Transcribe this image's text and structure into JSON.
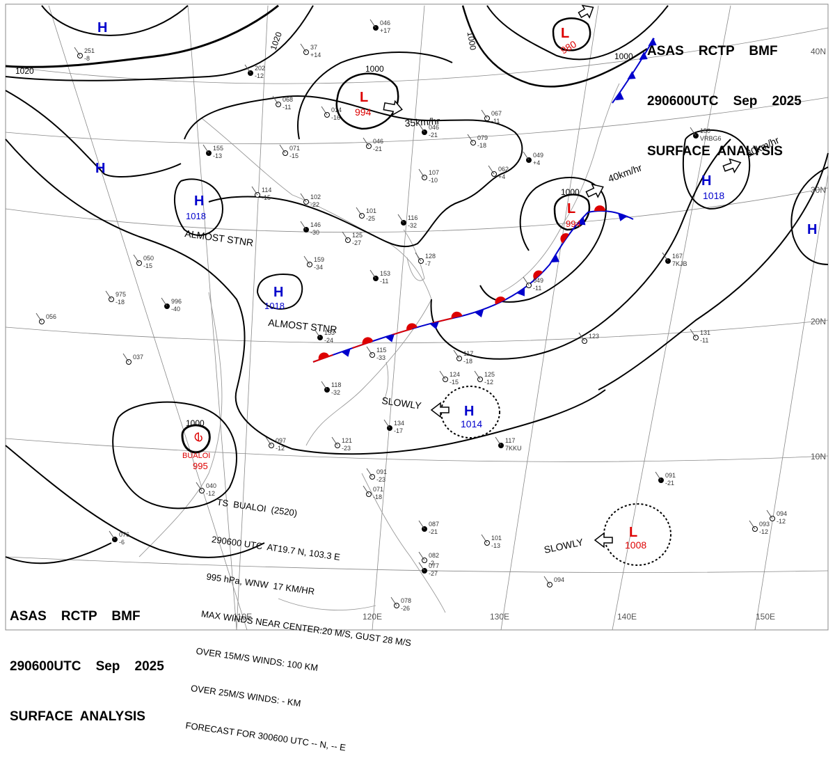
{
  "header": {
    "line1": "ASAS    RCTP    BMF",
    "line2": "290600UTC    Sep    2025",
    "line3": "SURFACE  ANALYSIS"
  },
  "footer_header": {
    "line1": "ASAS    RCTP    BMF",
    "line2": "290600UTC    Sep    2025",
    "line3": "SURFACE  ANALYSIS"
  },
  "isobar_labels": [
    "1020",
    "1020",
    "1000",
    "1000",
    "1000",
    "1000",
    "1000"
  ],
  "pressure_centers": [
    {
      "symbol": "H",
      "value": ""
    },
    {
      "symbol": "H",
      "value": ""
    },
    {
      "symbol": "H",
      "value": "1018",
      "note": "ALMOST STNR"
    },
    {
      "symbol": "H",
      "value": "1018",
      "note": "ALMOST STNR"
    },
    {
      "symbol": "L",
      "value": "994",
      "motion": "35km/hr"
    },
    {
      "symbol": "L",
      "value": "980"
    },
    {
      "symbol": "L",
      "value": "994",
      "motion": "40km/hr"
    },
    {
      "symbol": "H",
      "value": "1018",
      "motion": "30km/hr"
    },
    {
      "symbol": "H",
      "value": ""
    },
    {
      "symbol": "H",
      "value": "1014",
      "motion": "SLOWLY"
    },
    {
      "symbol": "L",
      "value": "1008",
      "motion": "SLOWLY"
    }
  ],
  "typhoon": {
    "name": "BUALOI",
    "pressure": "995",
    "isobar": "1000"
  },
  "storm_info": [
    "TS  BUALOI  (2520)",
    "290600 UTC  AT19.7 N, 103.3 E",
    "995 hPa, WNW  17 KM/HR",
    "MAX WINDS NEAR CENTER:20 M/S, GUST 28 M/S",
    "OVER 15M/S WINDS: 100 KM",
    "OVER 25M/S WINDS: - KM",
    "FORECAST FOR 300600 UTC -- N, -- E"
  ],
  "lon_labels": [
    "110E",
    "120E",
    "130E",
    "140E",
    "150E"
  ],
  "lat_labels": [
    "30N",
    "20N",
    "10N"
  ],
  "stations": [
    {
      "a": "046",
      "b": "+17"
    },
    {
      "a": "251",
      "b": "-8"
    },
    {
      "a": "37",
      "b": "+14"
    },
    {
      "a": "202",
      "b": "-12"
    },
    {
      "a": "068",
      "b": "-11"
    },
    {
      "a": "014",
      "b": "-16"
    },
    {
      "a": "046",
      "b": "-21"
    },
    {
      "a": "046",
      "b": "-21"
    },
    {
      "a": "071",
      "b": "-15"
    },
    {
      "a": "155",
      "b": "-13"
    },
    {
      "a": "114",
      "b": "-15"
    },
    {
      "a": "102",
      "b": "-22"
    },
    {
      "a": "146",
      "b": "-30"
    },
    {
      "a": "101",
      "b": "-25"
    },
    {
      "a": "125",
      "b": "-27"
    },
    {
      "a": "116",
      "b": "-32"
    },
    {
      "a": "107",
      "b": "-10"
    },
    {
      "a": "062",
      "b": "+4"
    },
    {
      "a": "049",
      "b": "+4"
    },
    {
      "a": "067",
      "b": "-11"
    },
    {
      "a": "079",
      "b": "-18"
    },
    {
      "a": "150",
      "b": "VRBG6"
    },
    {
      "a": "050",
      "b": "-15"
    },
    {
      "a": "159",
      "b": "-34"
    },
    {
      "a": "153",
      "b": "-11"
    },
    {
      "a": "128",
      "b": "-7"
    },
    {
      "a": "975",
      "b": "-18"
    },
    {
      "a": "996",
      "b": "-40"
    },
    {
      "a": "056",
      "b": ""
    },
    {
      "a": "037",
      "b": ""
    },
    {
      "a": "153",
      "b": "-24"
    },
    {
      "a": "115",
      "b": "-33"
    },
    {
      "a": "117",
      "b": "-18"
    },
    {
      "a": "118",
      "b": "-32"
    },
    {
      "a": "124",
      "b": "-15"
    },
    {
      "a": "125",
      "b": "-12"
    },
    {
      "a": "134",
      "b": "-17"
    },
    {
      "a": "097",
      "b": "-12"
    },
    {
      "a": "121",
      "b": "-23"
    },
    {
      "a": "117",
      "b": "7KKU"
    },
    {
      "a": "091",
      "b": "-23"
    },
    {
      "a": "071",
      "b": "-18"
    },
    {
      "a": "087",
      "b": "-21"
    },
    {
      "a": "101",
      "b": "-13"
    },
    {
      "a": "082",
      "b": "-2"
    },
    {
      "a": "077",
      "b": "-27"
    },
    {
      "a": "094",
      "b": ""
    },
    {
      "a": "093",
      "b": "-12"
    },
    {
      "a": "167",
      "b": "7KJB"
    },
    {
      "a": "131",
      "b": "-11"
    },
    {
      "a": "123",
      "b": ""
    },
    {
      "a": "091",
      "b": "-21"
    },
    {
      "a": "094",
      "b": "-12"
    },
    {
      "a": "049",
      "b": "-11"
    },
    {
      "a": "076",
      "b": "-6"
    },
    {
      "a": "040",
      "b": "-12"
    },
    {
      "a": "078",
      "b": "-26"
    }
  ]
}
